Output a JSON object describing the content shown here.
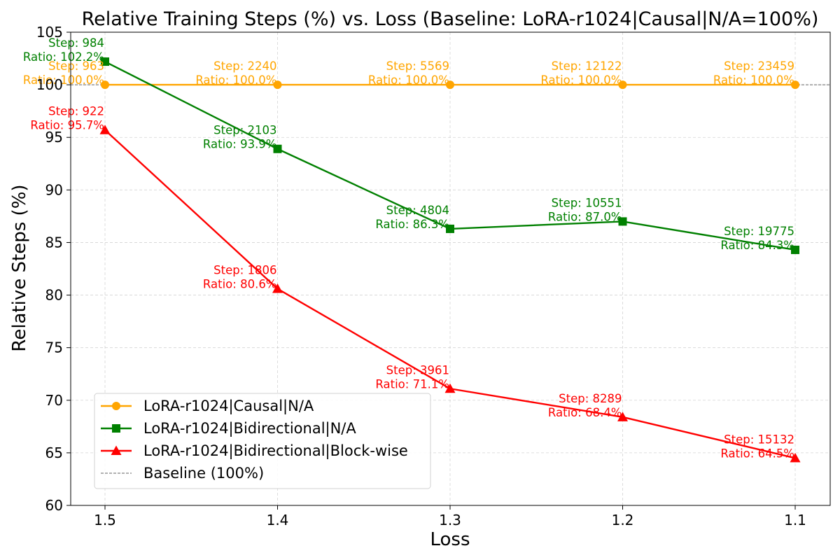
{
  "chart_data": {
    "type": "line",
    "title": "Relative Training Steps (%) vs. Loss (Baseline: LoRA-r1024|Causal|N/A=100%)",
    "xlabel": "Loss",
    "ylabel": "Relative Steps (%)",
    "categories": [
      "1.5",
      "1.4",
      "1.3",
      "1.2",
      "1.1"
    ],
    "ylim": [
      60,
      105
    ],
    "yticks": [
      60,
      65,
      70,
      75,
      80,
      85,
      90,
      95,
      100,
      105
    ],
    "grid": true,
    "legend_position": "lower-left",
    "baseline": {
      "label": "Baseline (100%)",
      "value": 100,
      "color": "#808080"
    },
    "series": [
      {
        "name": "LoRA-r1024|Causal|N/A",
        "color": "#FFA500",
        "marker": "circle",
        "values": [
          100.0,
          100.0,
          100.0,
          100.0,
          100.0
        ],
        "steps": [
          963,
          2240,
          5569,
          12122,
          23459
        ],
        "annotations": [
          [
            "Step: 963",
            "Ratio: 100.0%"
          ],
          [
            "Step: 2240",
            "Ratio: 100.0%"
          ],
          [
            "Step: 5569",
            "Ratio: 100.0%"
          ],
          [
            "Step: 12122",
            "Ratio: 100.0%"
          ],
          [
            "Step: 23459",
            "Ratio: 100.0%"
          ]
        ]
      },
      {
        "name": "LoRA-r1024|Bidirectional|N/A",
        "color": "#008000",
        "marker": "square",
        "values": [
          102.2,
          93.9,
          86.3,
          87.0,
          84.3
        ],
        "steps": [
          984,
          2103,
          4804,
          10551,
          19775
        ],
        "annotations": [
          [
            "Step: 984",
            "Ratio: 102.2%"
          ],
          [
            "Step: 2103",
            "Ratio: 93.9%"
          ],
          [
            "Step: 4804",
            "Ratio: 86.3%"
          ],
          [
            "Step: 10551",
            "Ratio: 87.0%"
          ],
          [
            "Step: 19775",
            "Ratio: 84.3%"
          ]
        ]
      },
      {
        "name": "LoRA-r1024|Bidirectional|Block-wise",
        "color": "#FF0000",
        "marker": "triangle",
        "values": [
          95.7,
          80.6,
          71.1,
          68.4,
          64.5
        ],
        "steps": [
          922,
          1806,
          3961,
          8289,
          15132
        ],
        "annotations": [
          [
            "Step: 922",
            "Ratio: 95.7%"
          ],
          [
            "Step: 1806",
            "Ratio: 80.6%"
          ],
          [
            "Step: 3961",
            "Ratio: 71.1%"
          ],
          [
            "Step: 8289",
            "Ratio: 68.4%"
          ],
          [
            "Step: 15132",
            "Ratio: 64.5%"
          ]
        ]
      }
    ]
  }
}
